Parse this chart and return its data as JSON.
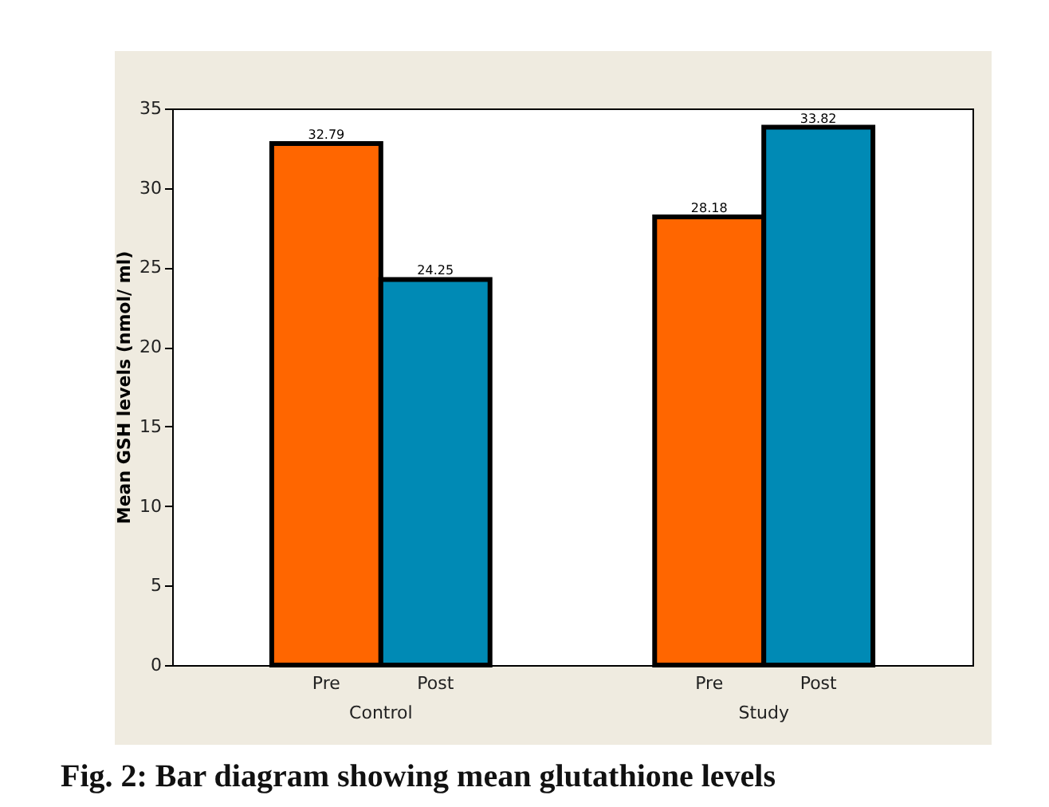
{
  "chart_data": {
    "type": "bar",
    "ylabel": "Mean GSH levels (nmol/ ml)",
    "categories": [
      "Control",
      "Study"
    ],
    "series": [
      {
        "name": "Pre",
        "color": "#ff6600",
        "values": [
          32.79,
          28.18
        ]
      },
      {
        "name": "Post",
        "color": "#008ab5",
        "values": [
          24.25,
          33.82
        ]
      }
    ],
    "ylim": [
      0,
      35
    ],
    "yticks": [
      0,
      5,
      10,
      15,
      20,
      25,
      30,
      35
    ],
    "data_labels": true,
    "annotations": [
      "Fig. 2: Bar diagram showing mean glutathione levels"
    ]
  }
}
